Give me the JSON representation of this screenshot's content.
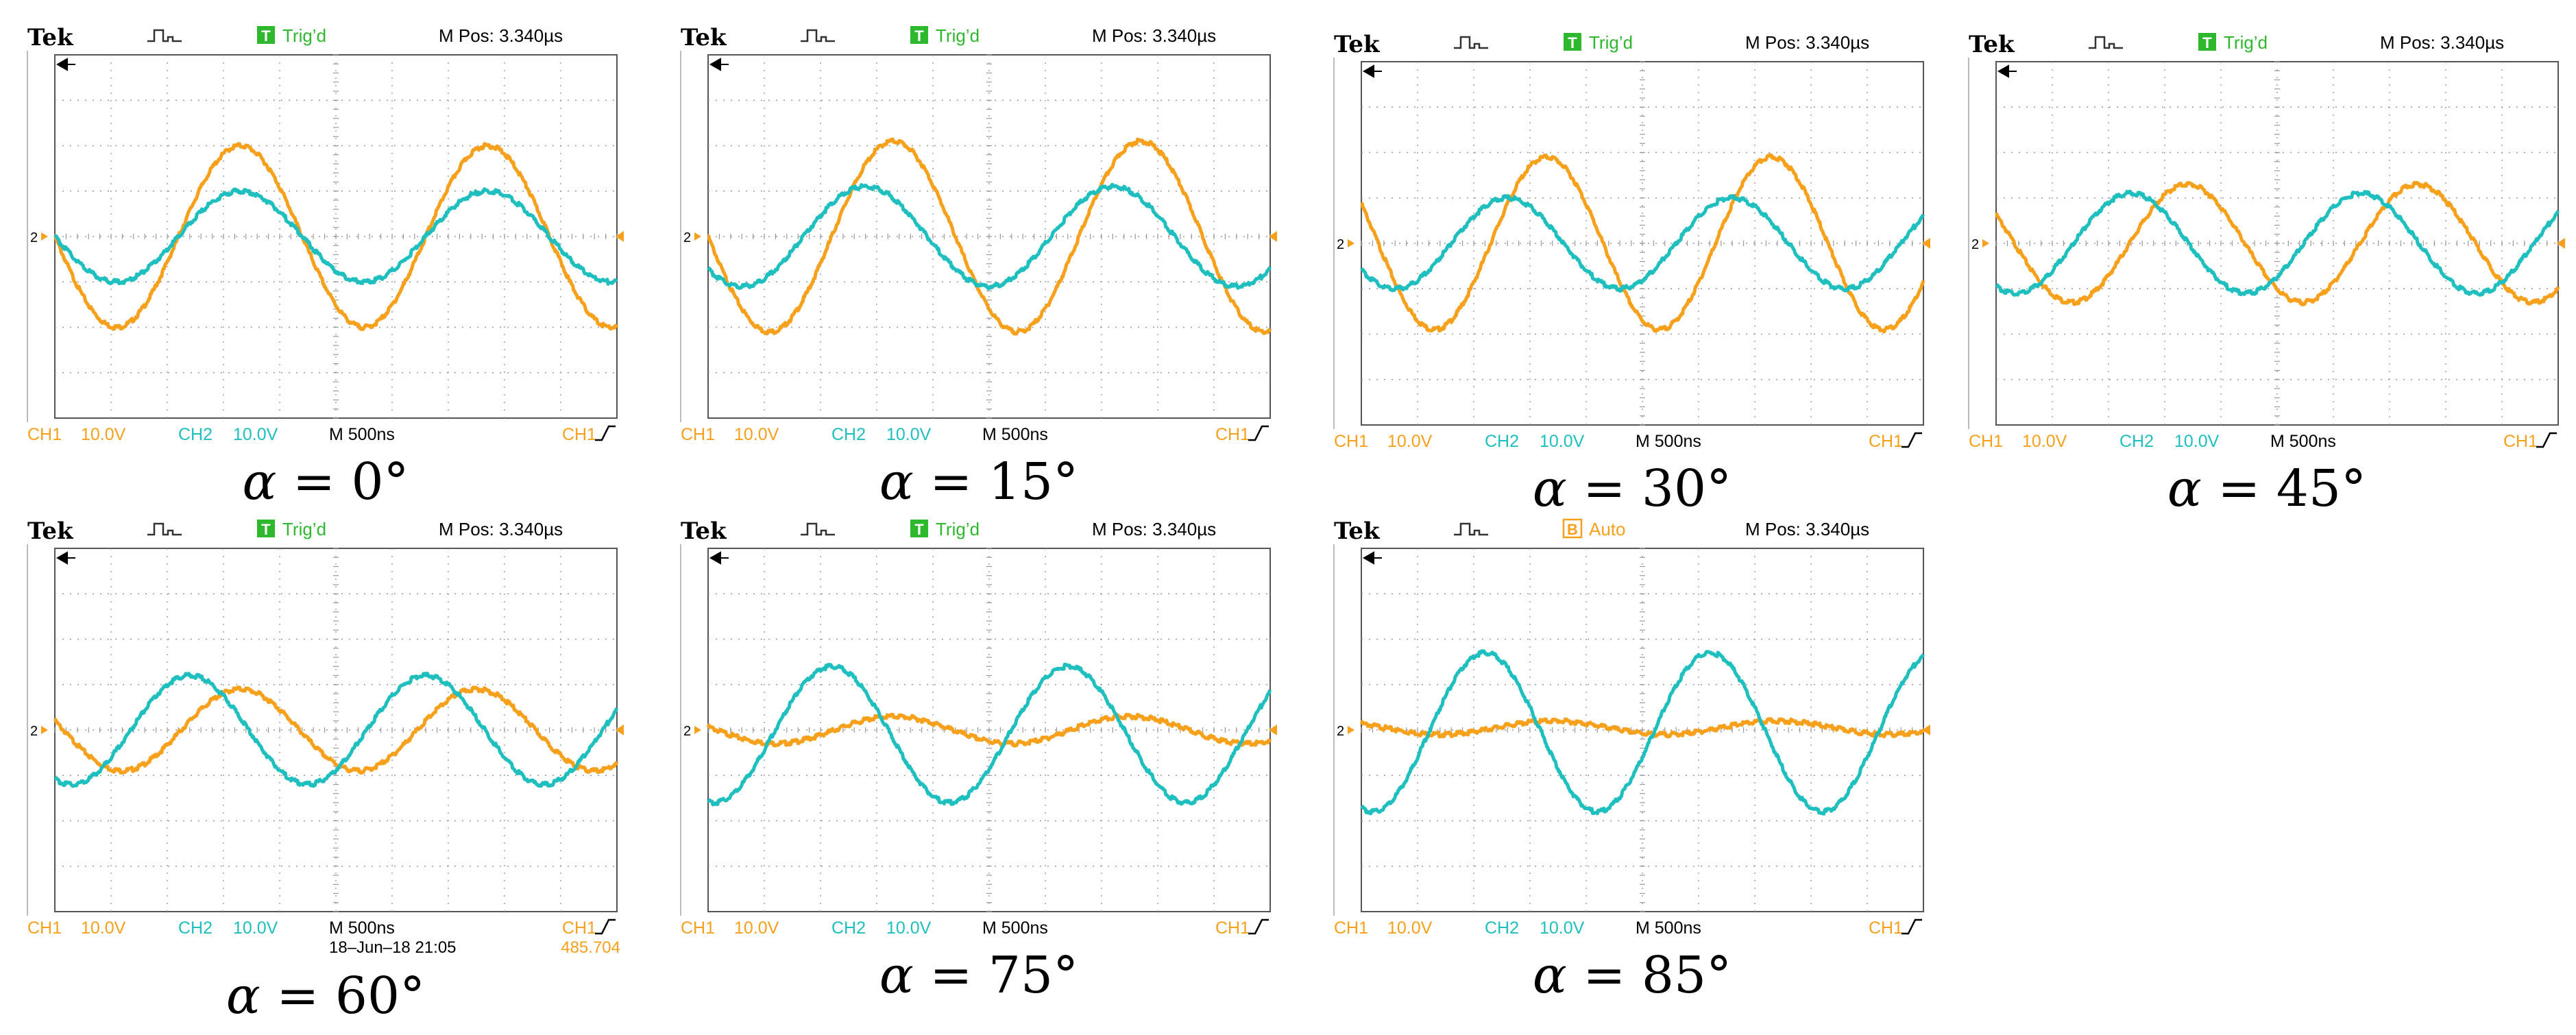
{
  "colors": {
    "ch1": "#f7a01c",
    "ch2": "#1fbfbf",
    "trig_badge": "#2db82d",
    "auto_badge": "#f7a01c",
    "grid": "#9a9a9a",
    "frame": "#555555"
  },
  "scope_common": {
    "brand": "Tek",
    "mpos": "M Pos: 3.340µs",
    "ch1_label": "CH1",
    "ch1_scale": "10.0V",
    "ch2_label": "CH2",
    "ch2_scale": "10.0V",
    "timebase": "M 500ns",
    "trigger_src": "CH1",
    "ground_marker": "2",
    "trigger_edge_icon": "rising-edge-icon",
    "trigger_arrow_icon": "arrow-left-icon",
    "acq_icon": "pulse-icon"
  },
  "chart_data": [
    {
      "type": "line",
      "caption_symbol": "α",
      "caption_value": " = 0°",
      "trigger_badge": "T",
      "trigger_status": "Trig’d",
      "footer_date": "",
      "footer_freq": "",
      "xlim": [
        0,
        10
      ],
      "ylim": [
        -4,
        4
      ],
      "x_unit": "div",
      "series": [
        {
          "channel": "CH1",
          "amplitude_div": 2.0,
          "period_div": 4.4,
          "peak_x_div": 3.3,
          "offset_div": 0
        },
        {
          "channel": "CH2",
          "amplitude_div": 1.0,
          "period_div": 4.4,
          "peak_x_div": 3.3,
          "offset_div": 0
        }
      ]
    },
    {
      "type": "line",
      "caption_symbol": "α",
      "caption_value": " = 15°",
      "trigger_badge": "T",
      "trigger_status": "Trig’d",
      "footer_date": "",
      "footer_freq": "",
      "xlim": [
        0,
        10
      ],
      "ylim": [
        -4,
        4
      ],
      "x_unit": "div",
      "series": [
        {
          "channel": "CH1",
          "amplitude_div": 2.1,
          "period_div": 4.4,
          "peak_x_div": 3.3,
          "offset_div": 0
        },
        {
          "channel": "CH2",
          "amplitude_div": 1.1,
          "period_div": 4.4,
          "peak_x_div": 2.8,
          "offset_div": 0
        }
      ]
    },
    {
      "type": "line",
      "caption_symbol": "α",
      "caption_value": " = 30°",
      "trigger_badge": "T",
      "trigger_status": "Trig’d",
      "footer_date": "",
      "footer_freq": "",
      "xlim": [
        0,
        10
      ],
      "ylim": [
        -4,
        4
      ],
      "x_unit": "div",
      "series": [
        {
          "channel": "CH1",
          "amplitude_div": 1.9,
          "period_div": 4.0,
          "peak_x_div": 3.3,
          "offset_div": 0
        },
        {
          "channel": "CH2",
          "amplitude_div": 1.0,
          "period_div": 4.0,
          "peak_x_div": 2.6,
          "offset_div": 0
        }
      ]
    },
    {
      "type": "line",
      "caption_symbol": "α",
      "caption_value": " = 45°",
      "trigger_badge": "T",
      "trigger_status": "Trig’d",
      "footer_date": "",
      "footer_freq": "",
      "xlim": [
        0,
        10
      ],
      "ylim": [
        -4,
        4
      ],
      "x_unit": "div",
      "series": [
        {
          "channel": "CH1",
          "amplitude_div": 1.3,
          "period_div": 4.1,
          "peak_x_div": 3.4,
          "offset_div": 0
        },
        {
          "channel": "CH2",
          "amplitude_div": 1.1,
          "period_div": 4.1,
          "peak_x_div": 2.4,
          "offset_div": 0
        }
      ]
    },
    {
      "type": "line",
      "caption_symbol": "α",
      "caption_value": " = 60°",
      "trigger_badge": "T",
      "trigger_status": "Trig’d",
      "footer_date": "18–Jun–18 21:05",
      "footer_freq": "485.704",
      "xlim": [
        0,
        10
      ],
      "ylim": [
        -4,
        4
      ],
      "x_unit": "div",
      "series": [
        {
          "channel": "CH1",
          "amplitude_div": 0.9,
          "period_div": 4.2,
          "peak_x_div": 3.3,
          "offset_div": 0
        },
        {
          "channel": "CH2",
          "amplitude_div": 1.2,
          "period_div": 4.2,
          "peak_x_div": 2.4,
          "offset_div": 0
        }
      ]
    },
    {
      "type": "line",
      "caption_symbol": "α",
      "caption_value": " = 75°",
      "trigger_badge": "T",
      "trigger_status": "Trig’d",
      "footer_date": "",
      "footer_freq": "",
      "xlim": [
        0,
        10
      ],
      "ylim": [
        -4,
        4
      ],
      "x_unit": "div",
      "series": [
        {
          "channel": "CH1",
          "amplitude_div": 0.3,
          "period_div": 4.2,
          "peak_x_div": 3.3,
          "offset_div": 0
        },
        {
          "channel": "CH2",
          "amplitude_div": 1.5,
          "period_div": 4.2,
          "peak_x_div": 2.2,
          "offset_div": -0.1
        }
      ]
    },
    {
      "type": "line",
      "caption_symbol": "α",
      "caption_value": " = 85°",
      "trigger_badge": "B",
      "trigger_status": "Auto",
      "footer_date": "",
      "footer_freq": "",
      "xlim": [
        0,
        10
      ],
      "ylim": [
        -4,
        4
      ],
      "x_unit": "div",
      "series": [
        {
          "channel": "CH1",
          "amplitude_div": 0.15,
          "period_div": 4.0,
          "peak_x_div": 3.4,
          "offset_div": 0.05
        },
        {
          "channel": "CH2",
          "amplitude_div": 1.75,
          "period_div": 4.0,
          "peak_x_div": 2.2,
          "offset_div": -0.05
        }
      ]
    }
  ]
}
